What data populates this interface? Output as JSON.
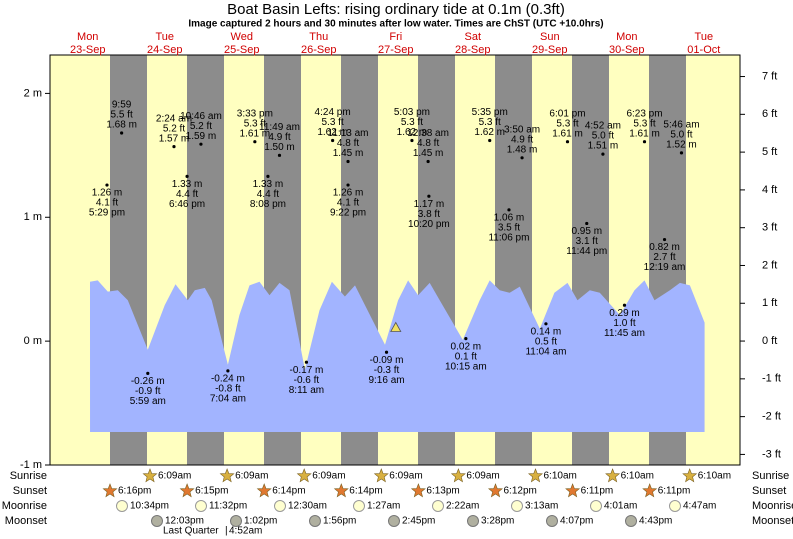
{
  "chart_data": {
    "type": "tide",
    "title": "Boat Basin Lefts: rising  ordinary tide at 0.1m (0.3ft)",
    "subtitle": "Image captured 2 hours and 30 minutes after low water. Times are ChST (UTC +10.0hrs)",
    "xlim": [
      -0.49,
      8.47
    ],
    "xticks": [
      {
        "value": 0,
        "label": "Mon"
      },
      {
        "value": 1,
        "label": "Tue"
      },
      {
        "value": 2,
        "label": "Wed"
      },
      {
        "value": 3,
        "label": "Thu"
      },
      {
        "value": 4,
        "label": "Fri"
      },
      {
        "value": 5,
        "label": "Sat"
      },
      {
        "value": 6,
        "label": "Sun"
      },
      {
        "value": 7,
        "label": "Mon"
      },
      {
        "value": 8,
        "label": "Tue"
      }
    ],
    "xtick_dates": [
      "23-Sep",
      "24-Sep",
      "25-Sep",
      "26-Sep",
      "27-Sep",
      "28-Sep",
      "29-Sep",
      "30-Sep",
      "01-Oct"
    ],
    "ylim": [
      -1,
      2.31
    ],
    "yticks": [
      {
        "value": -1,
        "label": "-1 m"
      },
      {
        "value": 0,
        "label": "0 m"
      },
      {
        "value": 1,
        "label": "1 m"
      },
      {
        "value": 2,
        "label": "2 m"
      }
    ],
    "y2lim": [
      -3.28,
      7.57
    ],
    "y2ticks": [
      {
        "value": -3,
        "label": "-3 ft"
      },
      {
        "value": -2,
        "label": "-2 ft"
      },
      {
        "value": -1,
        "label": "-1 ft"
      },
      {
        "value": 0,
        "label": "0 ft"
      },
      {
        "value": 1,
        "label": "1 ft"
      },
      {
        "value": 2,
        "label": "2 ft"
      },
      {
        "value": 3,
        "label": "3 ft"
      },
      {
        "value": 4,
        "label": "4 ft"
      },
      {
        "value": 5,
        "label": "5 ft"
      },
      {
        "value": 6,
        "label": "6 ft"
      },
      {
        "value": 7,
        "label": "7 ft"
      }
    ],
    "curve": {
      "color": "#a2b4ff",
      "x": [
        0.03,
        0.13,
        0.26,
        0.39,
        0.52,
        0.78,
        1.0,
        1.14,
        1.3,
        1.39,
        1.52,
        1.61,
        1.82,
        1.97,
        2.1,
        2.23,
        2.36,
        2.49,
        2.62,
        2.82,
        3.01,
        3.17,
        3.34,
        3.47,
        3.6,
        3.86,
        4.03,
        4.16,
        4.29,
        4.44,
        4.57,
        4.87,
        5.09,
        5.22,
        5.35,
        5.48,
        5.61,
        5.87,
        6.06,
        6.23,
        6.36,
        6.52,
        6.65,
        6.91,
        7.1,
        7.23,
        7.36,
        7.56,
        7.69,
        7.82,
        8.01
      ],
      "values": [
        0.48,
        0.49,
        0.4,
        0.41,
        0.33,
        -0.07,
        0.29,
        0.46,
        0.33,
        0.41,
        0.43,
        0.33,
        -0.19,
        0.21,
        0.45,
        0.48,
        0.37,
        0.47,
        0.41,
        -0.23,
        0.25,
        0.48,
        0.36,
        0.45,
        0.29,
        -0.03,
        0.33,
        0.49,
        0.37,
        0.47,
        0.33,
        0.01,
        0.33,
        0.49,
        0.41,
        0.39,
        0.44,
        0.1,
        0.39,
        0.47,
        0.33,
        0.41,
        0.39,
        0.21,
        0.41,
        0.49,
        0.33,
        0.41,
        0.47,
        0.45,
        0.15
      ]
    },
    "now": {
      "x": 4.0,
      "value": 0.11,
      "color": "#f0e060"
    },
    "events_above": {
      "x": [
        0.44,
        1.12,
        1.47,
        2.17,
        2.49,
        3.18,
        3.38,
        4.21,
        4.42,
        5.22,
        5.64,
        6.23,
        6.69,
        7.23,
        7.71
      ],
      "values": [
        1.68,
        1.57,
        1.59,
        1.61,
        1.5,
        1.62,
        1.45,
        1.62,
        1.45,
        1.62,
        1.48,
        1.61,
        1.51,
        1.61,
        1.52
      ],
      "value_labels": [
        "1.68 m",
        "1.57 m",
        "1.59 m",
        "1.61 m",
        "1.50 m",
        "1.62 m",
        "1.45 m",
        "1.62 m",
        "1.45 m",
        "1.62 m",
        "1.48 m",
        "1.61 m",
        "1.51 m",
        "1.61 m",
        "1.52 m"
      ],
      "ft_labels": [
        "5.5 ft",
        "5.2 ft",
        "5.2 ft",
        "5.3 ft",
        "4.9 ft",
        "5.3 ft",
        "4.8 ft",
        "5.3 ft",
        "4.8 ft",
        "5.3 ft",
        "4.9 ft",
        "5.3 ft",
        "5.0 ft",
        "5.3 ft",
        "5.0 ft"
      ],
      "times": [
        "9:59",
        "2:24 am",
        "10:46 am",
        "3:33 pm",
        "11:49 am",
        "4:24 pm",
        "11:13 am",
        "5:03 pm",
        "12:38 am",
        "5:35 pm",
        "3:50 am",
        "6:01 pm",
        "4:52 am",
        "6:23 pm",
        "5:46 am"
      ]
    },
    "events_below": {
      "x": [
        0.25,
        1.29,
        2.34,
        3.38,
        4.43,
        5.47,
        6.48,
        7.49,
        0.78,
        1.82,
        2.84,
        3.88,
        4.91,
        5.95,
        6.97
      ],
      "values": [
        1.26,
        1.33,
        1.33,
        1.26,
        1.17,
        1.06,
        0.95,
        0.82,
        -0.26,
        -0.24,
        -0.17,
        -0.09,
        0.02,
        0.14,
        0.29
      ],
      "value_labels": [
        "1.26 m",
        "1.33 m",
        "1.33 m",
        "1.26 m",
        "1.17 m",
        "1.06 m",
        "0.95 m",
        "0.82 m",
        "-0.26 m",
        "-0.24 m",
        "-0.17 m",
        "-0.09 m",
        "0.02 m",
        "0.14 m",
        "0.29 m"
      ],
      "ft_labels": [
        "4.1 ft",
        "4.4 ft",
        "4.4 ft",
        "4.1 ft",
        "3.8 ft",
        "3.5 ft",
        "3.1 ft",
        "2.7 ft",
        "-0.9 ft",
        "-0.8 ft",
        "-0.6 ft",
        "-0.3 ft",
        "0.1 ft",
        "0.5 ft",
        "1.0 ft"
      ],
      "times": [
        "5:29 pm",
        "6:46 pm",
        "8:08 pm",
        "9:22 pm",
        "10:20 pm",
        "11:06 pm",
        "11:44 pm",
        "12:19 am",
        "5:59 am",
        "7:04 am",
        "8:11 am",
        "9:16 am",
        "10:15 am",
        "11:04 am",
        "11:45 am"
      ]
    },
    "row_labels": [
      "Sunrise",
      "Sunset",
      "Moonrise",
      "Moonset"
    ],
    "sunrise": [
      "6:09am",
      "6:09am",
      "6:09am",
      "6:09am",
      "6:09am",
      "6:10am",
      "6:10am",
      "6:10am"
    ],
    "sunset": [
      "6:16pm",
      "6:15pm",
      "6:14pm",
      "6:14pm",
      "6:13pm",
      "6:12pm",
      "6:11pm",
      "6:11pm"
    ],
    "moonrise": [
      "10:34pm",
      "11:32pm",
      "12:30am",
      "1:27am",
      "2:22am",
      "3:13am",
      "4:01am",
      "4:47am"
    ],
    "moonset": [
      "12:03pm",
      "1:02pm",
      "1:56pm",
      "2:45pm",
      "3:28pm",
      "4:07pm",
      "4:43pm"
    ],
    "moon_phase": "Last Quarter",
    "moon_phase_time": "4:52am"
  }
}
